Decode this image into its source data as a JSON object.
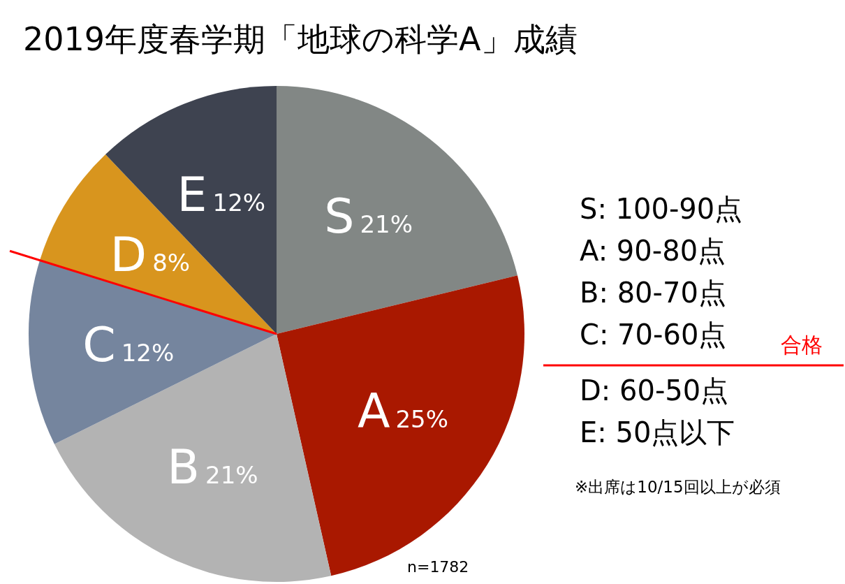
{
  "chart_data": {
    "type": "pie",
    "title": "2019年度春学期「地球の科学A」成績",
    "categories": [
      "S",
      "A",
      "B",
      "C",
      "D",
      "E"
    ],
    "values": [
      21,
      25,
      21,
      12,
      8,
      12
    ],
    "value_labels": [
      "21%",
      "25%",
      "21%",
      "12%",
      "8%",
      "12%"
    ],
    "colors": [
      "#828785",
      "#a91800",
      "#b3b3b3",
      "#75859e",
      "#d8951e",
      "#3e4350"
    ],
    "annotations": [
      "S: 100-90点",
      "A: 90-80点",
      "B: 80-70点",
      "C: 70-60点",
      "合格",
      "D: 60-50点",
      "E: 50点以下",
      "※出席は10/15回以上が必須",
      "n=1782"
    ]
  }
}
